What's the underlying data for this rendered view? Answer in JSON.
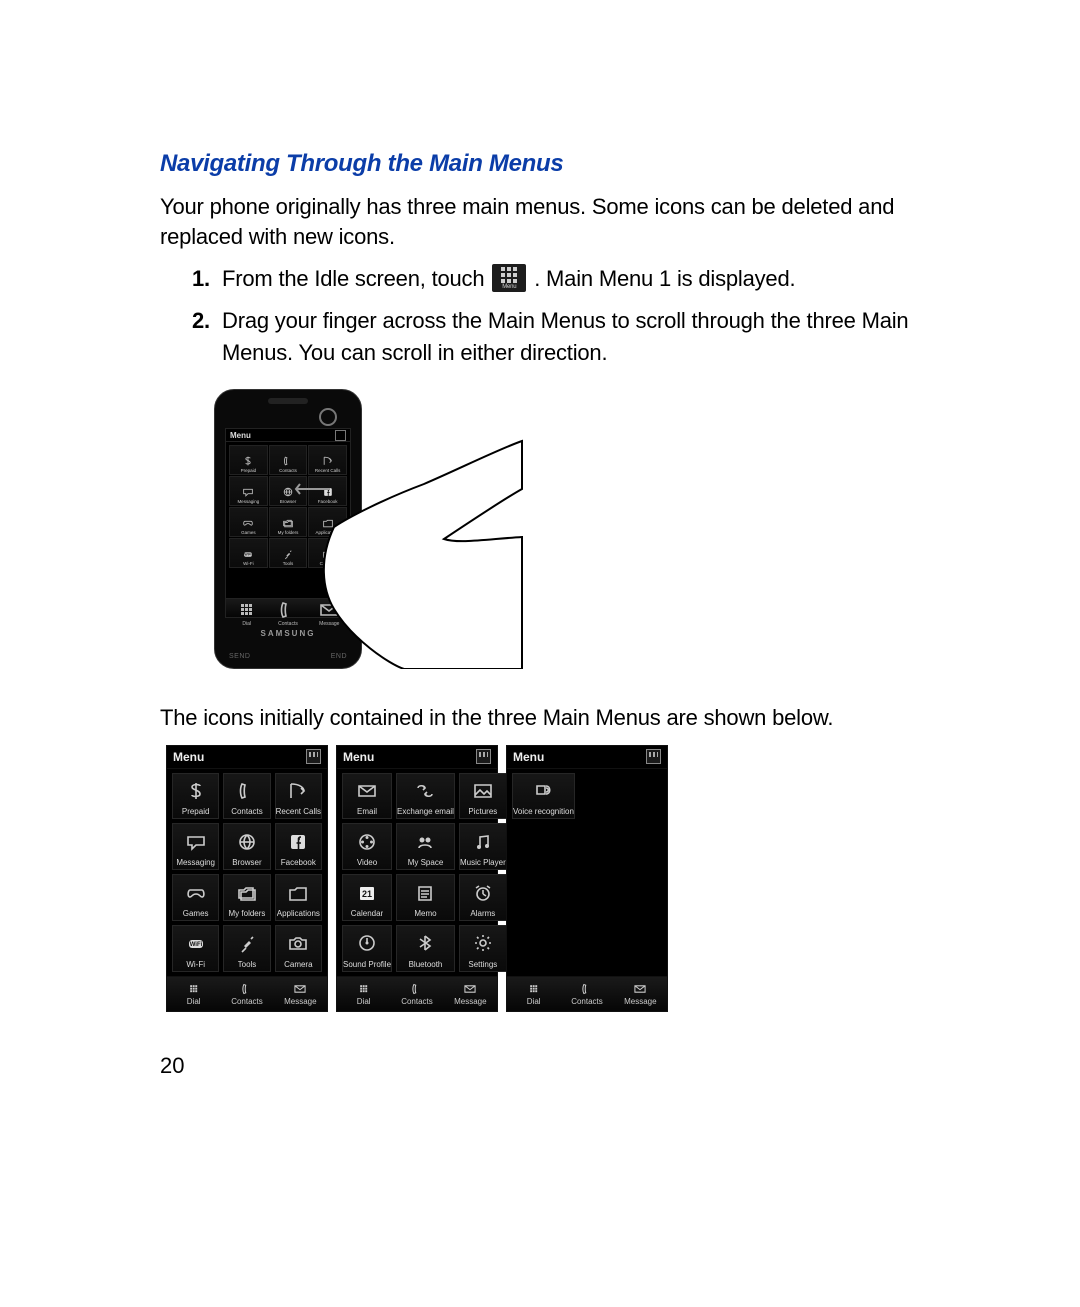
{
  "heading": "Navigating Through the Main Menus",
  "heading_color": "#0b3da8",
  "intro": "Your phone originally has three main menus. Some icons can be deleted and replaced with new icons.",
  "steps": [
    {
      "num": "1.",
      "before_icon": "From the Idle screen, touch ",
      "icon_label": "Menu",
      "after_icon": ". Main Menu 1 is displayed."
    },
    {
      "num": "2.",
      "text": "Drag your finger across the Main Menus to scroll through the three Main Menus. You can scroll in either direction."
    }
  ],
  "after_text": "The icons initially contained in the three Main Menus are shown below.",
  "page_number": "20",
  "phone": {
    "brand": "SAMSUNG",
    "send": "SEND",
    "end": "END",
    "menu_label": "Menu",
    "cells": [
      {
        "icon": "dollar",
        "l": "Prepaid"
      },
      {
        "icon": "contact",
        "l": "Contacts"
      },
      {
        "icon": "recent",
        "l": "Recent Calls"
      },
      {
        "icon": "msg",
        "l": "Messaging"
      },
      {
        "icon": "globe",
        "l": "Browser"
      },
      {
        "icon": "fb",
        "l": "Facebook"
      },
      {
        "icon": "games",
        "l": "Games"
      },
      {
        "icon": "folders",
        "l": "My folders"
      },
      {
        "icon": "apps",
        "l": "Applications"
      },
      {
        "icon": "wifi",
        "l": "Wi-Fi"
      },
      {
        "icon": "tools",
        "l": "Tools"
      },
      {
        "icon": "camera",
        "l": "Camera"
      }
    ],
    "bottom": [
      {
        "icon": "dial",
        "l": "Dial"
      },
      {
        "icon": "phone",
        "l": "Contacts"
      },
      {
        "icon": "env",
        "l": "Message"
      }
    ]
  },
  "menus": [
    {
      "header": "Menu",
      "cells": [
        {
          "icon": "dollar",
          "l": "Prepaid"
        },
        {
          "icon": "phone",
          "l": "Contacts"
        },
        {
          "icon": "recent",
          "l": "Recent Calls"
        },
        {
          "icon": "msg",
          "l": "Messaging"
        },
        {
          "icon": "globe",
          "l": "Browser"
        },
        {
          "icon": "fb",
          "l": "Facebook"
        },
        {
          "icon": "games",
          "l": "Games"
        },
        {
          "icon": "folders",
          "l": "My folders"
        },
        {
          "icon": "apps",
          "l": "Applications"
        },
        {
          "icon": "wifi",
          "l": "Wi-Fi"
        },
        {
          "icon": "tools",
          "l": "Tools"
        },
        {
          "icon": "camera",
          "l": "Camera"
        }
      ]
    },
    {
      "header": "Menu",
      "cells": [
        {
          "icon": "env",
          "l": "Email"
        },
        {
          "icon": "exch",
          "l": "Exchange email"
        },
        {
          "icon": "pic",
          "l": "Pictures"
        },
        {
          "icon": "reel",
          "l": "Video"
        },
        {
          "icon": "mys",
          "l": "My Space"
        },
        {
          "icon": "music",
          "l": "Music Player"
        },
        {
          "icon": "cal",
          "l": "Calendar"
        },
        {
          "icon": "memo",
          "l": "Memo"
        },
        {
          "icon": "alarm",
          "l": "Alarms"
        },
        {
          "icon": "sprof",
          "l": "Sound Profile"
        },
        {
          "icon": "bt",
          "l": "Bluetooth"
        },
        {
          "icon": "gear",
          "l": "Settings"
        }
      ]
    },
    {
      "header": "Menu",
      "cells": [
        {
          "icon": "voice",
          "l": "Voice recognition"
        },
        {
          "icon": "",
          "l": "",
          "empty": true
        },
        {
          "icon": "",
          "l": "",
          "empty": true
        },
        {
          "icon": "",
          "l": "",
          "empty": true
        },
        {
          "icon": "",
          "l": "",
          "empty": true
        },
        {
          "icon": "",
          "l": "",
          "empty": true
        },
        {
          "icon": "",
          "l": "",
          "empty": true
        },
        {
          "icon": "",
          "l": "",
          "empty": true
        },
        {
          "icon": "",
          "l": "",
          "empty": true
        },
        {
          "icon": "",
          "l": "",
          "empty": true
        },
        {
          "icon": "",
          "l": "",
          "empty": true
        },
        {
          "icon": "",
          "l": "",
          "empty": true
        }
      ]
    }
  ],
  "bottom_bar": [
    {
      "icon": "dial",
      "l": "Dial"
    },
    {
      "icon": "phone",
      "l": "Contacts"
    },
    {
      "icon": "env",
      "l": "Message"
    }
  ],
  "colors": {
    "page_bg": "#ffffff",
    "text": "#000000",
    "phone_shell": "#0a0a0a",
    "cell_border": "#262626",
    "cell_bg_top": "#171717",
    "cell_bg_bottom": "#0a0a0a",
    "icon_stroke": "#cccccc"
  }
}
